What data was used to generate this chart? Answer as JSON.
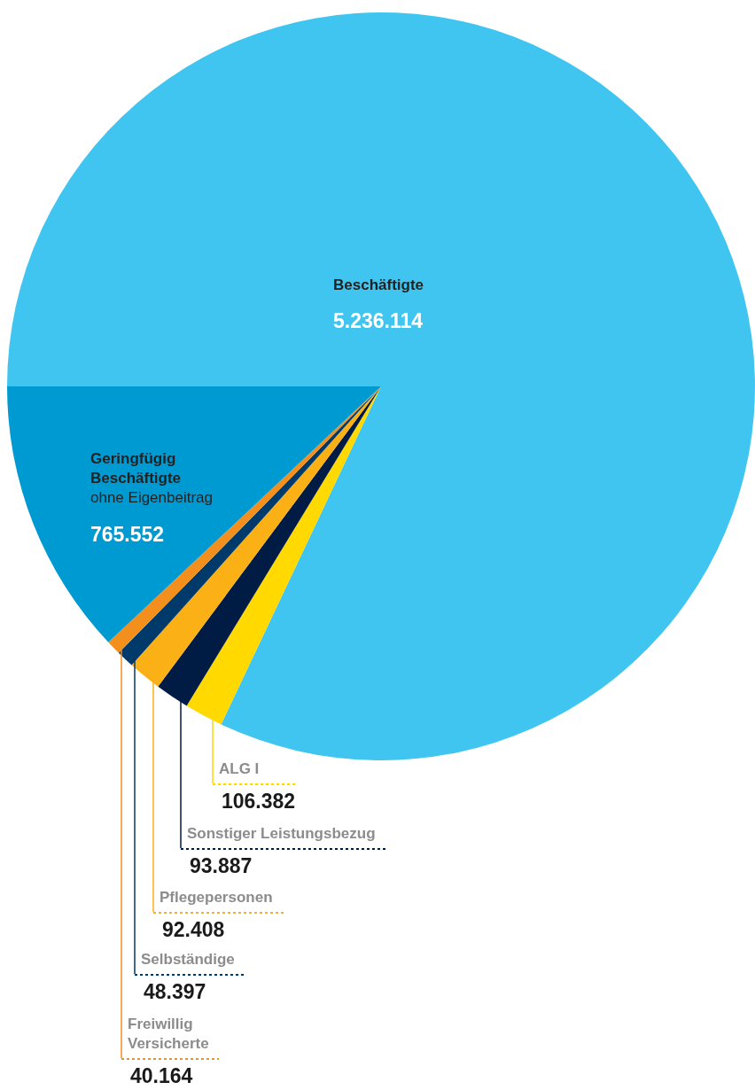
{
  "chart_data": {
    "type": "pie",
    "categories": [
      "Beschäftigte",
      "ALG I",
      "Sonstiger Leistungsbezug",
      "Pflegepersonen",
      "Selbständige",
      "Freiwillig\nVersicherte",
      "Geringfügig\nBeschäftigte\nohne Eigenbeitrag"
    ],
    "values": [
      5236114,
      106382,
      93887,
      92408,
      48397,
      40164,
      765552
    ],
    "value_labels": [
      "5.236.114",
      "106.382",
      "93.887",
      "92.408",
      "48.397",
      "40.164",
      "765.552"
    ],
    "colors": [
      "#40c5f1",
      "#ffd900",
      "#001b44",
      "#fbb116",
      "#003a6a",
      "#f3901d",
      "#009ad3"
    ],
    "legend": false
  }
}
